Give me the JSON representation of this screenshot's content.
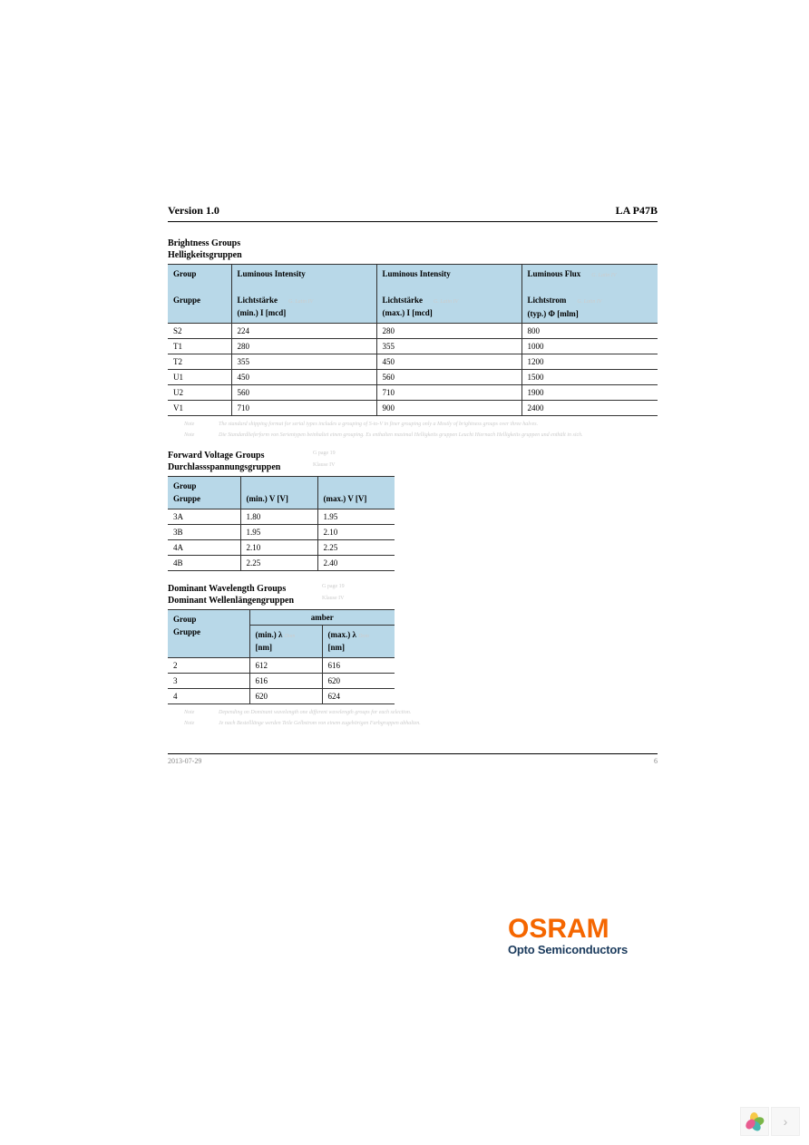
{
  "header": {
    "version": "Version 1.0",
    "part": "LA P47B"
  },
  "brightness": {
    "title_en": "Brightness Groups",
    "title_de": "Helligkeitsgruppen",
    "col_group_en": "Group",
    "col_group_de": "Gruppe",
    "col1_en": "Luminous Intensity",
    "col1_de": "Lichtstärke",
    "col1_unit": "(min.) I      [mcd]",
    "col1_faint": "G. Latin IV",
    "col2_en": "Luminous Intensity",
    "col2_de": "Lichtstärke",
    "col2_unit": "(max.) I      [mcd]",
    "col2_faint": "G. Latin IV",
    "col3_en": "Luminous Flux",
    "col3_de": "Lichtstrom",
    "col3_unit": "(typ.) Φ      [mlm]",
    "col3_faint": "G. Latin IV",
    "rows": [
      {
        "g": "S2",
        "min": "224",
        "max": "280",
        "flux": "800"
      },
      {
        "g": "T1",
        "min": "280",
        "max": "355",
        "flux": "1000"
      },
      {
        "g": "T2",
        "min": "355",
        "max": "450",
        "flux": "1200"
      },
      {
        "g": "U1",
        "min": "450",
        "max": "560",
        "flux": "1500"
      },
      {
        "g": "U2",
        "min": "560",
        "max": "710",
        "flux": "1900"
      },
      {
        "g": "V1",
        "min": "710",
        "max": "900",
        "flux": "2400"
      }
    ],
    "note1_l": "Note",
    "note1_t": "The standard shipping format for serial types includes a grouping of S-to-V in finer grouping only a Mostly of brightness groups over three halves.",
    "note2_l": "Note",
    "note2_t": "Die Standardlieferform von Serientypen beinhaltet einen grouping. Es enthalten maximal Helligkeits gruppen Leucht Hiernach Helligkeits gruppen und enthält in sich."
  },
  "voltage": {
    "title_en": "Forward Voltage Groups",
    "title_de": "Durchlassspannungsgruppen",
    "title_faint_en": "G page 19",
    "title_faint_de": "Klause IV",
    "col_group_en": "Group",
    "col_group_de": "Gruppe",
    "col1": "(min.) V      [V]",
    "col2": "(max.) V      [V]",
    "rows": [
      {
        "g": "3A",
        "min": "1.80",
        "max": "1.95"
      },
      {
        "g": "3B",
        "min": "1.95",
        "max": "2.10"
      },
      {
        "g": "4A",
        "min": "2.10",
        "max": "2.25"
      },
      {
        "g": "4B",
        "min": "2.25",
        "max": "2.40"
      }
    ]
  },
  "wavelength": {
    "title_en": "Dominant Wavelength Groups",
    "title_de": "Dominant Wellenlängengruppen",
    "title_faint_en": "G page 19",
    "title_faint_de": "Klause IV",
    "col_group_en": "Group",
    "col_group_de": "Gruppe",
    "span_label": "amber",
    "col1": "(min.) λ",
    "col1b": "[nm]",
    "col1_faint": "Dom",
    "col2": "(max.) λ",
    "col2b": "[nm]",
    "col2_faint": "Dom",
    "rows": [
      {
        "g": "2",
        "min": "612",
        "max": "616"
      },
      {
        "g": "3",
        "min": "616",
        "max": "620"
      },
      {
        "g": "4",
        "min": "620",
        "max": "624"
      }
    ],
    "note1_l": "Note",
    "note1_t": "Depending on Dominant wavelength one different wavelength groups for each selection.",
    "note2_l": "Note",
    "note2_t": "Je nach Bestelllänge werden Teile Gelbstrom von einem zugehörigen Farbgruppen abhalten."
  },
  "footer": {
    "date": "2013-07-29",
    "page": "6"
  },
  "logo": {
    "brand": "OSRAM",
    "sub": "Opto Semiconductors"
  }
}
